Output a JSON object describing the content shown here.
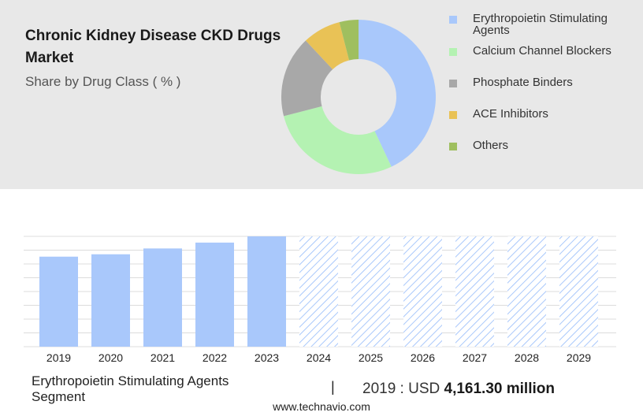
{
  "title": "Chronic Kidney Disease CKD Drugs Market",
  "subtitle": "Share by Drug Class ( % )",
  "colors": {
    "panel_bg": "#e8e8e8",
    "bar": "#a9c8fb",
    "forecast_hatch": "#a9c8fb"
  },
  "chart_data": [
    {
      "type": "pie",
      "donut": true,
      "categories": [
        "Erythropoietin Stimulating Agents",
        "Calcium Channel Blockers",
        "Phosphate Binders",
        "ACE Inhibitors",
        "Others"
      ],
      "values": [
        43,
        28,
        17,
        8,
        4
      ],
      "colors": [
        "#a9c8fb",
        "#b4f2b2",
        "#a8a8a8",
        "#e9c256",
        "#9fbf5f"
      ],
      "legend_position": "right"
    },
    {
      "type": "bar",
      "categories": [
        "2019",
        "2020",
        "2021",
        "2022",
        "2023",
        "2024",
        "2025",
        "2026",
        "2027",
        "2028",
        "2029"
      ],
      "values": [
        4161.3,
        4271,
        4540,
        4811,
        5099,
        5099,
        5099,
        5099,
        5099,
        5099,
        5099
      ],
      "forecast_from_index": 5,
      "ylim": [
        0,
        5099
      ],
      "grid": true,
      "xlabel": "",
      "ylabel": ""
    }
  ],
  "footer": {
    "segment": "Erythropoietin Stimulating Agents Segment",
    "separator": "|",
    "value_prefix": "2019 : USD",
    "value_amount": "4,161.30 million"
  },
  "source": "www.technavio.com"
}
